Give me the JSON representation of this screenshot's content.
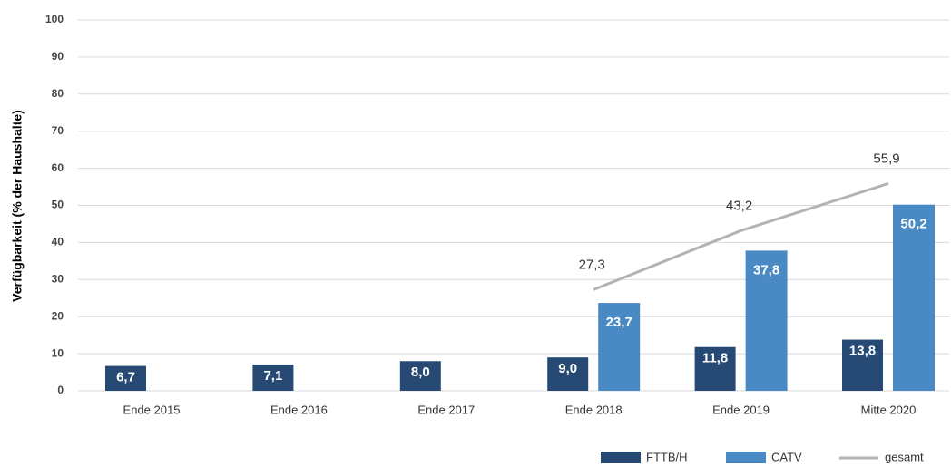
{
  "chart_data": {
    "type": "bar",
    "y_label": "Verfügbarkeit (% der Haushalte)",
    "categories": [
      "Ende 2015",
      "Ende 2016",
      "Ende 2017",
      "Ende 2018",
      "Ende 2019",
      "Mitte 2020"
    ],
    "series": [
      {
        "name": "FTTB/H",
        "color": "#264a73",
        "values": [
          6.7,
          7.1,
          8.0,
          9.0,
          11.8,
          13.8
        ],
        "value_labels": [
          "6,7",
          "7,1",
          "8,0",
          "9,0",
          "11,8",
          "13,8"
        ]
      },
      {
        "name": "CATV",
        "color": "#4a8ac4",
        "values": [
          null,
          null,
          null,
          23.7,
          37.8,
          50.2
        ],
        "value_labels": [
          null,
          null,
          null,
          "23,7",
          "37,8",
          "50,2"
        ]
      },
      {
        "name": "gesamt",
        "type": "line",
        "color": "#b3b3b3",
        "values": [
          null,
          null,
          null,
          27.3,
          43.2,
          55.9
        ],
        "value_labels": [
          null,
          null,
          null,
          "27,3",
          "43,2",
          "55,9"
        ]
      }
    ],
    "ylim": [
      0,
      100
    ],
    "yticks": [
      0,
      10,
      20,
      30,
      40,
      50,
      60,
      70,
      80,
      90,
      100
    ],
    "grid": true,
    "legend": "bottom-right"
  }
}
